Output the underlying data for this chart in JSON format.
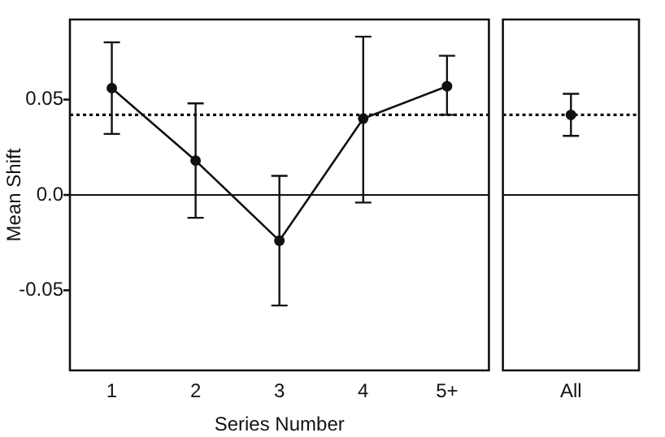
{
  "chart_data": [
    {
      "type": "line",
      "xlabel": "Series Number",
      "ylabel": "Mean Shift",
      "categories": [
        "1",
        "2",
        "3",
        "4",
        "5+"
      ],
      "series": [
        {
          "color": "#111111",
          "values": [
            0.056,
            0.018,
            -0.024,
            0.04,
            0.057
          ],
          "errors": [
            [
              0.032,
              0.08
            ],
            [
              -0.012,
              0.048
            ],
            [
              -0.058,
              0.01
            ],
            [
              -0.004,
              0.083
            ],
            [
              0.042,
              0.073
            ]
          ]
        }
      ],
      "ylim": [
        -0.092,
        0.092
      ],
      "yticks": [
        -0.05,
        {
          "value": 0,
          "label": "0.0"
        },
        0.05
      ],
      "ref_lines": [
        {
          "axis": "y",
          "value": 0,
          "line_style": "solid",
          "color": "#111111"
        },
        {
          "axis": "y",
          "value": 0.042,
          "line_style": "dotted",
          "color": "#111111"
        }
      ],
      "grid": false,
      "legend": false,
      "marker": "circle",
      "line_style": "solid"
    },
    {
      "type": "line",
      "categories": [
        "All"
      ],
      "series": [
        {
          "color": "#111111",
          "values": [
            0.042
          ],
          "errors": [
            [
              0.031,
              0.053
            ]
          ]
        }
      ],
      "ylim": [
        -0.092,
        0.092
      ],
      "tick_labels": "x",
      "ref_lines": [
        {
          "axis": "y",
          "value": 0,
          "line_style": "solid",
          "color": "#111111"
        },
        {
          "axis": "y",
          "value": 0.042,
          "line_style": "dotted",
          "color": "#111111"
        }
      ],
      "grid": false,
      "legend": false,
      "marker": "circle",
      "line_style": "solid"
    }
  ]
}
